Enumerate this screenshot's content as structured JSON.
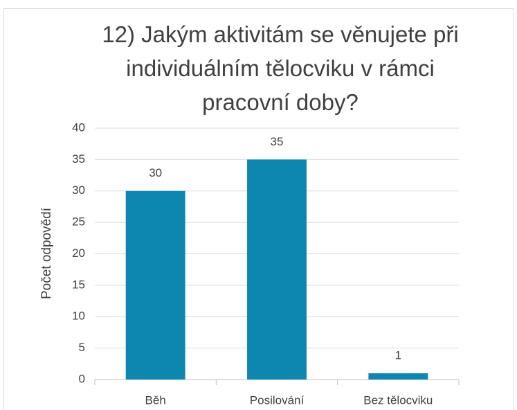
{
  "chart_data": {
    "type": "bar",
    "title": "12) Jakým aktivitám se věnujete při individuálním tělocviku v rámci pracovní doby?",
    "ylabel": "Počet odpovědí",
    "categories": [
      "Běh",
      "Posilování",
      "Bez tělocviku"
    ],
    "values": [
      30,
      35,
      1
    ],
    "color": "#0e87b0",
    "ylim": [
      0,
      40
    ],
    "yticks": [
      0,
      5,
      10,
      15,
      20,
      25,
      30,
      35,
      40
    ],
    "grid": true,
    "data_labels": true
  }
}
